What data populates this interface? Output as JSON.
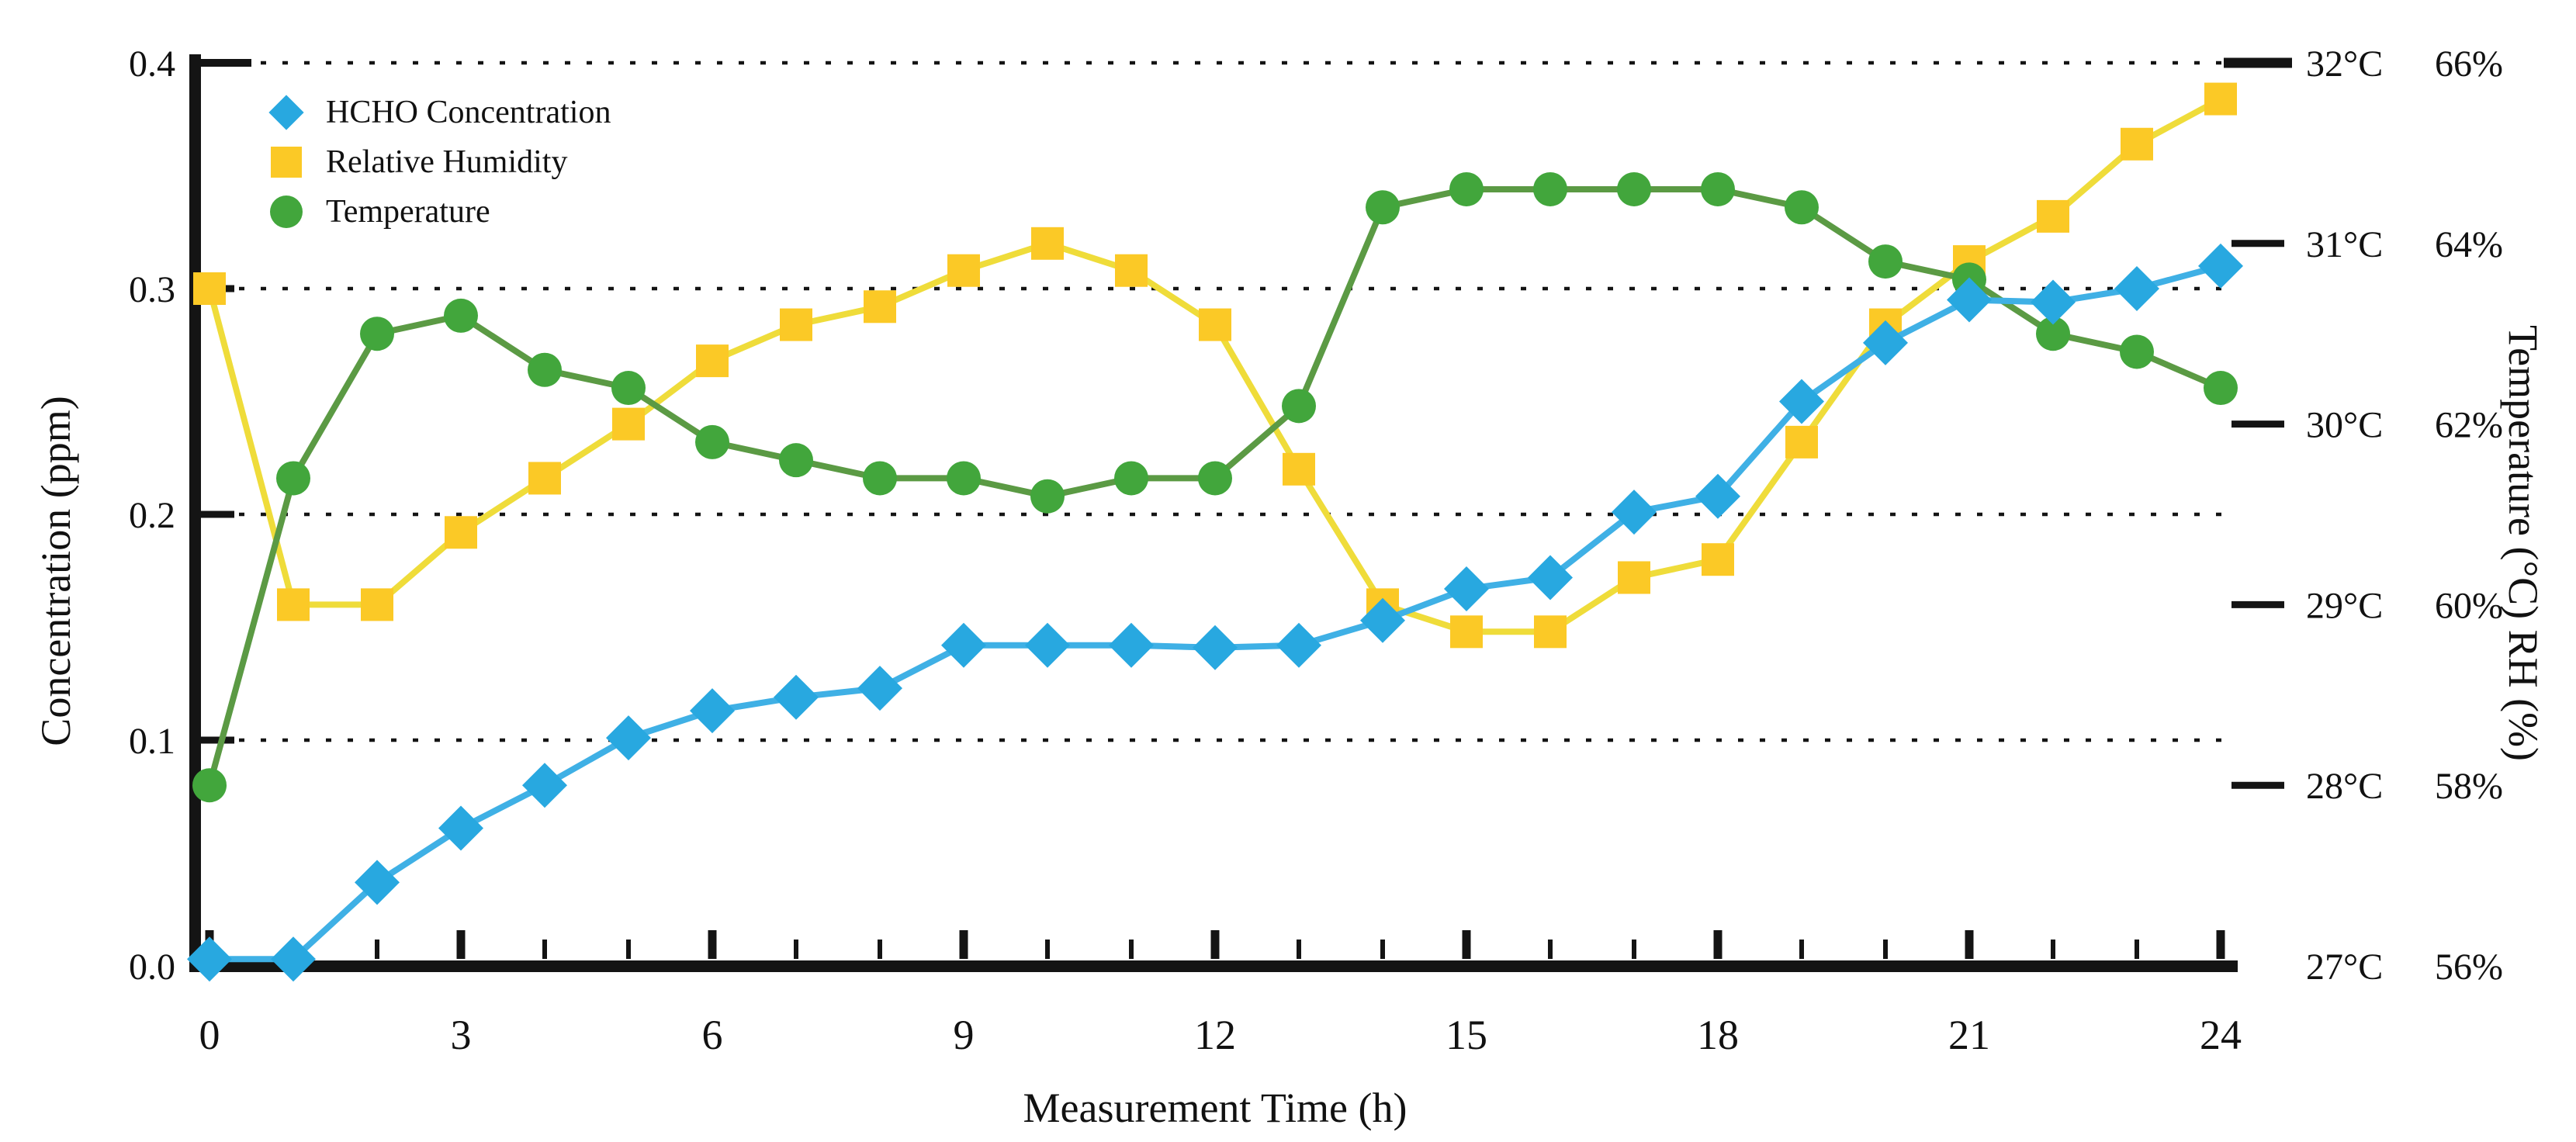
{
  "chart_data": {
    "type": "line",
    "title": "",
    "x": [
      0,
      1,
      2,
      3,
      4,
      5,
      6,
      7,
      8,
      9,
      10,
      11,
      12,
      13,
      14,
      15,
      16,
      17,
      18,
      19,
      20,
      21,
      22,
      23,
      24
    ],
    "x_axis": {
      "title": "Measurement Time (h)",
      "range": [
        0,
        24
      ],
      "major_ticks": [
        0,
        3,
        6,
        9,
        12,
        15,
        18,
        21,
        24
      ],
      "minor_tick_step": 1
    },
    "left_axis": {
      "title": "Concentration (ppm)",
      "range": [
        0,
        0.4
      ],
      "ticks": [
        {
          "v": 0.0,
          "label": "0.0"
        },
        {
          "v": 0.1,
          "label": "0.1"
        },
        {
          "v": 0.2,
          "label": "0.2"
        },
        {
          "v": 0.3,
          "label": "0.3"
        },
        {
          "v": 0.4,
          "label": "0.4"
        }
      ],
      "gridlines": [
        0.1,
        0.2,
        0.3,
        0.4
      ]
    },
    "right_axis": {
      "title": "Temperature (°C) RH (%)",
      "temp": {
        "range": [
          27,
          32
        ],
        "ticks": [
          {
            "v": 27,
            "label": "27°C"
          },
          {
            "v": 28,
            "label": "28°C"
          },
          {
            "v": 29,
            "label": "29°C"
          },
          {
            "v": 30,
            "label": "30°C"
          },
          {
            "v": 31,
            "label": "31°C"
          },
          {
            "v": 32,
            "label": "32°C"
          }
        ]
      },
      "rh": {
        "range": [
          56,
          66
        ],
        "ticks": [
          {
            "v": 56,
            "label": "56%"
          },
          {
            "v": 58,
            "label": "58%"
          },
          {
            "v": 60,
            "label": "60%"
          },
          {
            "v": 62,
            "label": "62%"
          },
          {
            "v": 64,
            "label": "64%"
          },
          {
            "v": 66,
            "label": "66%"
          }
        ]
      }
    },
    "grid": "horizontal-dotted",
    "legend_position": "top-left-inside",
    "series": [
      {
        "name": "HCHO Concentration",
        "axis": "left",
        "unit": "ppm",
        "marker": "diamond",
        "color": "#28A8E0",
        "line_color": "#3FB0E5",
        "values": [
          0.003,
          0.003,
          0.037,
          0.061,
          0.08,
          0.101,
          0.113,
          0.119,
          0.123,
          0.142,
          0.142,
          0.142,
          0.141,
          0.142,
          0.153,
          0.167,
          0.172,
          0.201,
          0.208,
          0.25,
          0.276,
          0.295,
          0.294,
          0.3,
          0.31
        ]
      },
      {
        "name": "Relative Humidity",
        "axis": "rh",
        "unit": "%",
        "marker": "square",
        "color": "#FBC926",
        "line_color": "#EFDC3A",
        "values": [
          63.5,
          60.0,
          60.0,
          60.8,
          61.4,
          62.0,
          62.7,
          63.1,
          63.3,
          63.7,
          64.0,
          63.7,
          63.1,
          61.5,
          60.0,
          59.7,
          59.7,
          60.3,
          60.5,
          61.8,
          63.1,
          63.8,
          64.3,
          65.1,
          65.6
        ]
      },
      {
        "name": "Temperature",
        "axis": "temp",
        "unit": "°C",
        "marker": "circle",
        "color": "#42A63C",
        "line_color": "#5B9A44",
        "values": [
          28.0,
          29.7,
          30.5,
          30.6,
          30.3,
          30.2,
          29.9,
          29.8,
          29.7,
          29.7,
          29.6,
          29.7,
          29.7,
          30.1,
          31.2,
          31.3,
          31.3,
          31.3,
          31.3,
          31.2,
          30.9,
          30.8,
          30.5,
          30.4,
          30.2
        ]
      }
    ]
  }
}
